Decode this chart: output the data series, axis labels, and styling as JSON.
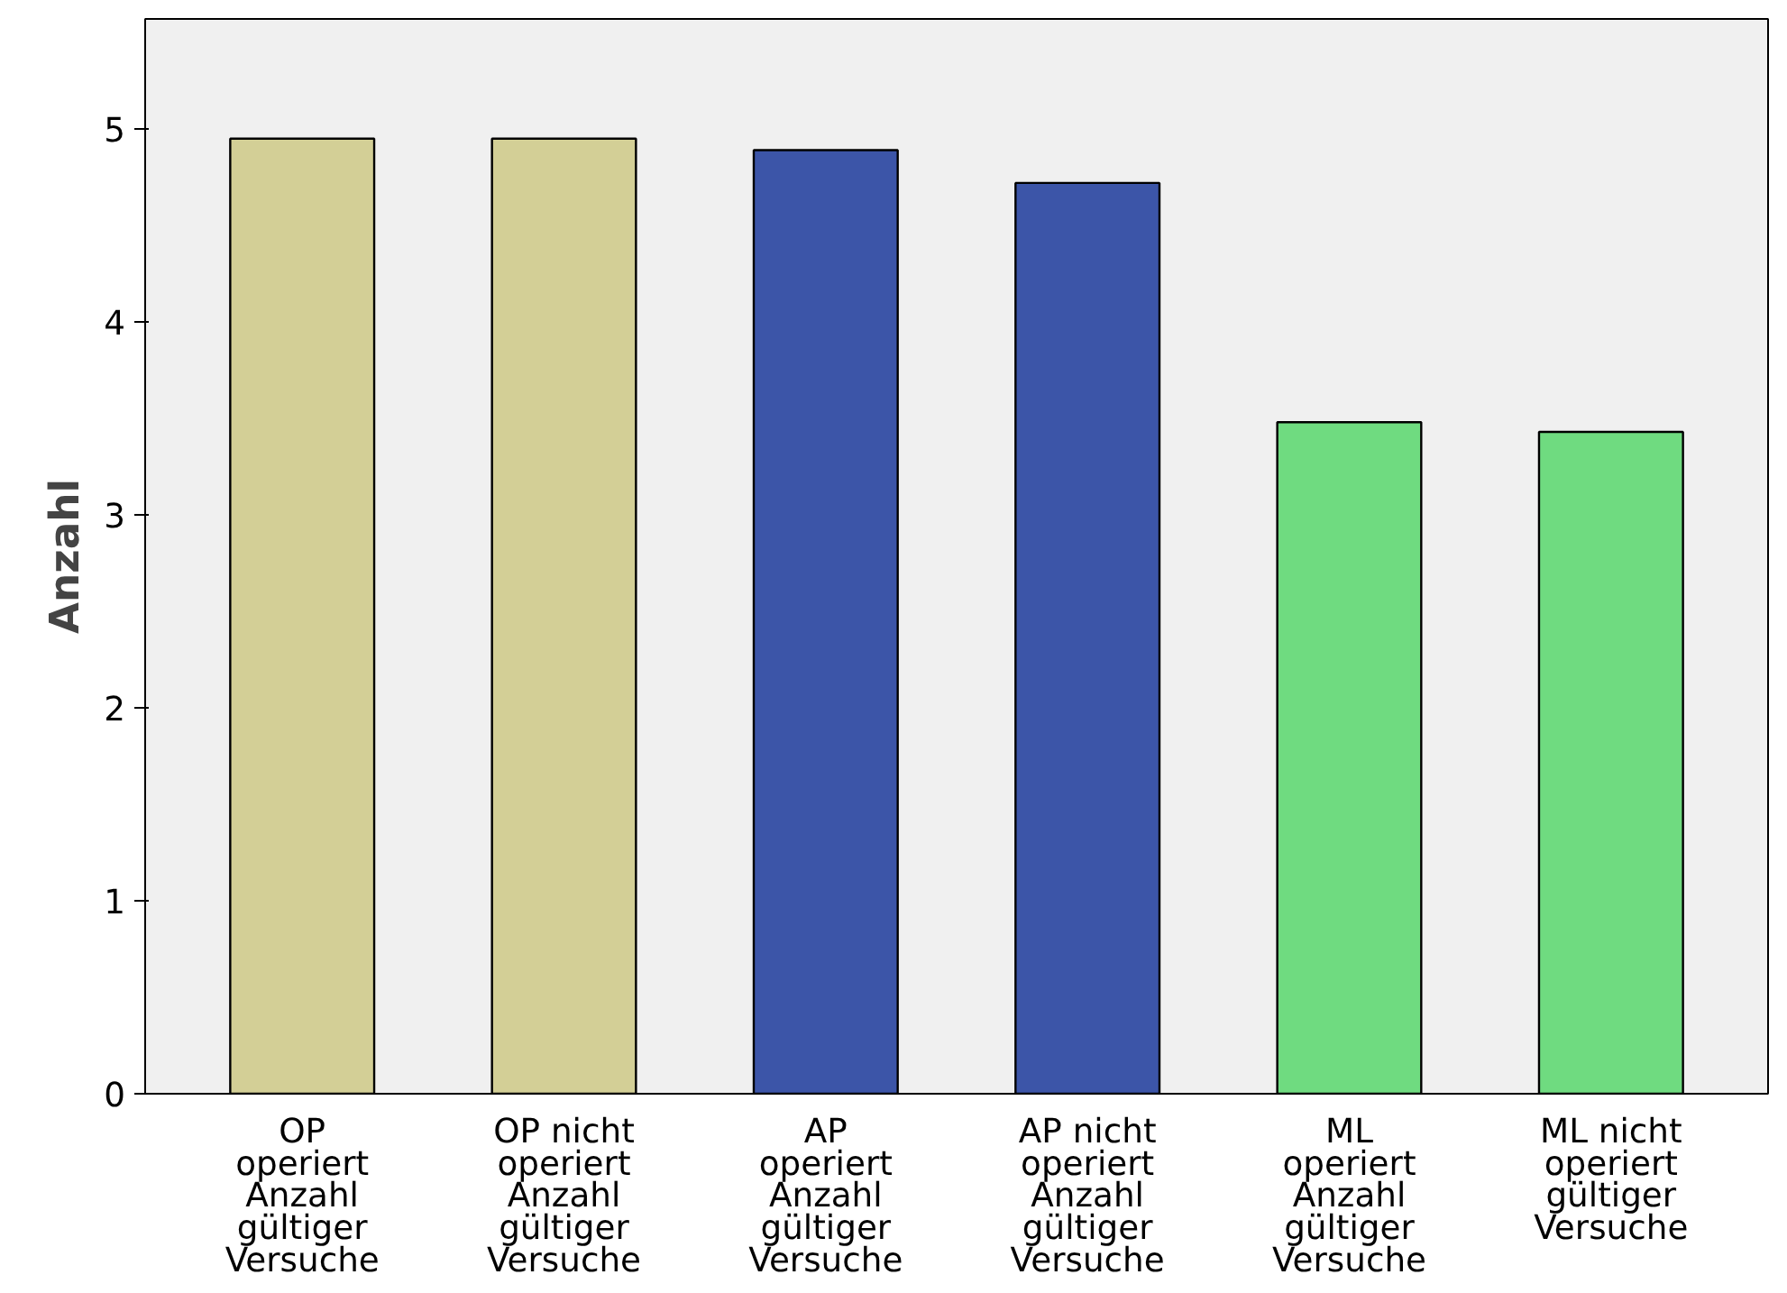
{
  "chart_data": {
    "type": "bar",
    "ylabel": "Anzahl",
    "categories": [
      "OP operiert Anzahl gültiger Versuche",
      "OP nicht operiert Anzahl gültiger Versuche",
      "AP operiert Anzahl gültiger Versuche",
      "AP nicht operiert Anzahl gültiger Versuche",
      "ML operiert Anzahl gültiger Versuche",
      "ML nicht operiert gültiger Versuche"
    ],
    "values": [
      4.95,
      4.95,
      4.89,
      4.72,
      3.48,
      3.43
    ],
    "colors": [
      "#d3cf96",
      "#d3cf96",
      "#3c55a8",
      "#3c55a8",
      "#6fdb80",
      "#6fdb80"
    ],
    "ylim": [
      0,
      5.57
    ],
    "yticks": [
      0,
      1,
      2,
      3,
      4,
      5
    ],
    "grid": false
  }
}
